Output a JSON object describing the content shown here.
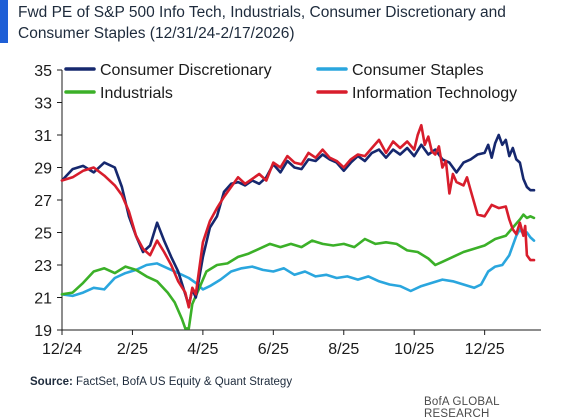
{
  "header": {
    "title": "Fwd PE of S&P 500 Info Tech, Industrials, Consumer Discretionary and Consumer Staples (12/31/24-2/17/2026)"
  },
  "footer": {
    "source_label": "Source:",
    "source_text": " FactSet, BofA US Equity & Quant Strategy",
    "brand": "BofA GLOBAL RESEARCH"
  },
  "chart_data": {
    "type": "line",
    "title": "Fwd PE of S&P 500 Info Tech, Industrials, Consumer Discretionary and Consumer Staples (12/31/24-2/17/2026)",
    "xlabel": "",
    "ylabel": "",
    "xlim": [
      0,
      13.6
    ],
    "ylim": [
      19,
      35
    ],
    "y_ticks": [
      19,
      21,
      23,
      25,
      27,
      29,
      31,
      33,
      35
    ],
    "x_ticks": [
      {
        "label": "12/24",
        "x": 0
      },
      {
        "label": "2/25",
        "x": 2
      },
      {
        "label": "4/25",
        "x": 4
      },
      {
        "label": "6/25",
        "x": 6
      },
      {
        "label": "8/25",
        "x": 8
      },
      {
        "label": "10/25",
        "x": 10
      },
      {
        "label": "12/25",
        "x": 12
      }
    ],
    "grid": false,
    "legend_position": "top",
    "series": [
      {
        "name": "Consumer Discretionary",
        "color": "#16286e",
        "points": [
          [
            0,
            28.2
          ],
          [
            0.3,
            28.9
          ],
          [
            0.6,
            29.1
          ],
          [
            0.9,
            28.7
          ],
          [
            1.2,
            29.3
          ],
          [
            1.5,
            29.0
          ],
          [
            1.7,
            27.8
          ],
          [
            1.9,
            26.0
          ],
          [
            2.1,
            24.8
          ],
          [
            2.3,
            23.8
          ],
          [
            2.5,
            24.2
          ],
          [
            2.7,
            25.6
          ],
          [
            2.9,
            24.5
          ],
          [
            3.1,
            23.5
          ],
          [
            3.3,
            22.6
          ],
          [
            3.5,
            21.2
          ],
          [
            3.6,
            20.5
          ],
          [
            3.7,
            21.5
          ],
          [
            3.8,
            21.0
          ],
          [
            4.0,
            23.5
          ],
          [
            4.2,
            25.3
          ],
          [
            4.4,
            26.0
          ],
          [
            4.6,
            27.5
          ],
          [
            4.8,
            28.0
          ],
          [
            5.0,
            28.1
          ],
          [
            5.2,
            27.9
          ],
          [
            5.4,
            28.2
          ],
          [
            5.6,
            28.0
          ],
          [
            5.8,
            28.4
          ],
          [
            6.0,
            29.2
          ],
          [
            6.2,
            28.7
          ],
          [
            6.4,
            29.4
          ],
          [
            6.6,
            29.0
          ],
          [
            6.8,
            28.9
          ],
          [
            7.0,
            29.5
          ],
          [
            7.2,
            29.4
          ],
          [
            7.4,
            29.8
          ],
          [
            7.6,
            29.5
          ],
          [
            7.8,
            29.3
          ],
          [
            8.0,
            28.8
          ],
          [
            8.2,
            29.3
          ],
          [
            8.4,
            29.7
          ],
          [
            8.6,
            29.4
          ],
          [
            8.8,
            29.9
          ],
          [
            9.0,
            30.1
          ],
          [
            9.2,
            29.6
          ],
          [
            9.4,
            30.1
          ],
          [
            9.6,
            29.8
          ],
          [
            9.8,
            30.2
          ],
          [
            10.0,
            29.7
          ],
          [
            10.2,
            30.4
          ],
          [
            10.4,
            29.8
          ],
          [
            10.6,
            30.1
          ],
          [
            10.8,
            29.5
          ],
          [
            11.0,
            29.3
          ],
          [
            11.2,
            28.7
          ],
          [
            11.4,
            29.3
          ],
          [
            11.6,
            29.5
          ],
          [
            11.8,
            29.8
          ],
          [
            12.0,
            29.9
          ],
          [
            12.1,
            30.4
          ],
          [
            12.2,
            29.6
          ],
          [
            12.3,
            30.5
          ],
          [
            12.4,
            31.0
          ],
          [
            12.5,
            30.4
          ],
          [
            12.6,
            30.7
          ],
          [
            12.7,
            29.7
          ],
          [
            12.8,
            30.2
          ],
          [
            12.9,
            29.5
          ],
          [
            13.0,
            29.3
          ],
          [
            13.1,
            28.3
          ],
          [
            13.2,
            27.8
          ],
          [
            13.3,
            27.6
          ],
          [
            13.4,
            27.6
          ]
        ]
      },
      {
        "name": "Consumer Staples",
        "color": "#2aa6de",
        "points": [
          [
            0,
            21.2
          ],
          [
            0.3,
            21.1
          ],
          [
            0.6,
            21.3
          ],
          [
            0.9,
            21.6
          ],
          [
            1.2,
            21.5
          ],
          [
            1.5,
            22.2
          ],
          [
            1.8,
            22.5
          ],
          [
            2.1,
            22.7
          ],
          [
            2.4,
            23.0
          ],
          [
            2.7,
            23.1
          ],
          [
            3.0,
            22.8
          ],
          [
            3.3,
            22.5
          ],
          [
            3.6,
            22.2
          ],
          [
            3.8,
            21.9
          ],
          [
            4.0,
            21.5
          ],
          [
            4.2,
            21.7
          ],
          [
            4.5,
            22.1
          ],
          [
            4.8,
            22.6
          ],
          [
            5.1,
            22.8
          ],
          [
            5.4,
            22.9
          ],
          [
            5.7,
            22.7
          ],
          [
            6.0,
            22.6
          ],
          [
            6.3,
            22.8
          ],
          [
            6.6,
            22.4
          ],
          [
            6.9,
            22.6
          ],
          [
            7.2,
            22.3
          ],
          [
            7.5,
            22.4
          ],
          [
            7.8,
            22.2
          ],
          [
            8.1,
            22.3
          ],
          [
            8.4,
            22.1
          ],
          [
            8.7,
            22.3
          ],
          [
            9.0,
            22.0
          ],
          [
            9.3,
            21.8
          ],
          [
            9.6,
            21.7
          ],
          [
            9.9,
            21.4
          ],
          [
            10.2,
            21.7
          ],
          [
            10.5,
            21.9
          ],
          [
            10.8,
            22.1
          ],
          [
            11.1,
            22.0
          ],
          [
            11.4,
            21.8
          ],
          [
            11.7,
            21.6
          ],
          [
            11.9,
            21.8
          ],
          [
            12.1,
            22.6
          ],
          [
            12.3,
            22.9
          ],
          [
            12.5,
            23.0
          ],
          [
            12.7,
            23.6
          ],
          [
            12.9,
            24.8
          ],
          [
            13.0,
            25.2
          ],
          [
            13.1,
            24.9
          ],
          [
            13.2,
            25.0
          ],
          [
            13.3,
            24.7
          ],
          [
            13.4,
            24.5
          ]
        ]
      },
      {
        "name": "Industrials",
        "color": "#3bb028",
        "points": [
          [
            0,
            21.2
          ],
          [
            0.3,
            21.3
          ],
          [
            0.6,
            21.9
          ],
          [
            0.9,
            22.6
          ],
          [
            1.2,
            22.8
          ],
          [
            1.5,
            22.5
          ],
          [
            1.8,
            22.9
          ],
          [
            2.1,
            22.7
          ],
          [
            2.4,
            22.3
          ],
          [
            2.7,
            22.0
          ],
          [
            3.0,
            21.3
          ],
          [
            3.2,
            20.7
          ],
          [
            3.4,
            19.7
          ],
          [
            3.5,
            19.1
          ],
          [
            3.6,
            19.1
          ],
          [
            3.7,
            20.6
          ],
          [
            3.9,
            21.6
          ],
          [
            4.1,
            22.6
          ],
          [
            4.4,
            23.0
          ],
          [
            4.7,
            23.1
          ],
          [
            5.0,
            23.5
          ],
          [
            5.3,
            23.7
          ],
          [
            5.6,
            24.0
          ],
          [
            5.9,
            24.3
          ],
          [
            6.2,
            24.1
          ],
          [
            6.5,
            24.3
          ],
          [
            6.8,
            24.1
          ],
          [
            7.1,
            24.5
          ],
          [
            7.4,
            24.3
          ],
          [
            7.7,
            24.2
          ],
          [
            8.0,
            24.3
          ],
          [
            8.3,
            24.1
          ],
          [
            8.6,
            24.6
          ],
          [
            8.9,
            24.3
          ],
          [
            9.2,
            24.4
          ],
          [
            9.5,
            24.3
          ],
          [
            9.8,
            23.9
          ],
          [
            10.1,
            23.8
          ],
          [
            10.4,
            23.4
          ],
          [
            10.6,
            23.0
          ],
          [
            10.8,
            23.2
          ],
          [
            11.1,
            23.5
          ],
          [
            11.4,
            23.8
          ],
          [
            11.7,
            24.0
          ],
          [
            12.0,
            24.2
          ],
          [
            12.3,
            24.6
          ],
          [
            12.6,
            24.8
          ],
          [
            12.8,
            25.3
          ],
          [
            13.0,
            25.8
          ],
          [
            13.1,
            26.1
          ],
          [
            13.2,
            25.9
          ],
          [
            13.3,
            26.0
          ],
          [
            13.4,
            25.9
          ]
        ]
      },
      {
        "name": "Information Technology",
        "color": "#d81d2c",
        "points": [
          [
            0,
            28.2
          ],
          [
            0.3,
            28.4
          ],
          [
            0.6,
            28.8
          ],
          [
            0.9,
            29.0
          ],
          [
            1.2,
            28.5
          ],
          [
            1.5,
            27.9
          ],
          [
            1.7,
            27.3
          ],
          [
            1.9,
            26.3
          ],
          [
            2.1,
            24.8
          ],
          [
            2.3,
            24.0
          ],
          [
            2.5,
            23.6
          ],
          [
            2.7,
            24.5
          ],
          [
            2.9,
            23.8
          ],
          [
            3.1,
            23.0
          ],
          [
            3.3,
            22.0
          ],
          [
            3.5,
            21.3
          ],
          [
            3.6,
            20.4
          ],
          [
            3.7,
            21.6
          ],
          [
            3.8,
            21.2
          ],
          [
            4.0,
            24.4
          ],
          [
            4.2,
            25.7
          ],
          [
            4.4,
            26.5
          ],
          [
            4.6,
            27.2
          ],
          [
            4.8,
            27.8
          ],
          [
            5.0,
            28.4
          ],
          [
            5.2,
            28.0
          ],
          [
            5.4,
            28.3
          ],
          [
            5.6,
            28.6
          ],
          [
            5.8,
            28.2
          ],
          [
            6.0,
            29.3
          ],
          [
            6.2,
            29.0
          ],
          [
            6.4,
            29.7
          ],
          [
            6.6,
            29.3
          ],
          [
            6.8,
            29.2
          ],
          [
            7.0,
            29.9
          ],
          [
            7.2,
            29.6
          ],
          [
            7.4,
            30.1
          ],
          [
            7.6,
            29.6
          ],
          [
            7.8,
            29.4
          ],
          [
            8.0,
            29.0
          ],
          [
            8.2,
            29.5
          ],
          [
            8.4,
            29.8
          ],
          [
            8.6,
            29.7
          ],
          [
            8.8,
            30.2
          ],
          [
            9.0,
            30.7
          ],
          [
            9.2,
            29.9
          ],
          [
            9.4,
            30.6
          ],
          [
            9.6,
            30.2
          ],
          [
            9.8,
            30.6
          ],
          [
            10.0,
            30.1
          ],
          [
            10.1,
            31.0
          ],
          [
            10.2,
            31.6
          ],
          [
            10.3,
            30.4
          ],
          [
            10.4,
            30.9
          ],
          [
            10.5,
            30.0
          ],
          [
            10.6,
            29.8
          ],
          [
            10.7,
            30.3
          ],
          [
            10.8,
            29.0
          ],
          [
            10.9,
            29.4
          ],
          [
            11.0,
            27.4
          ],
          [
            11.1,
            28.6
          ],
          [
            11.2,
            28.1
          ],
          [
            11.4,
            27.9
          ],
          [
            11.5,
            28.4
          ],
          [
            11.6,
            27.6
          ],
          [
            11.8,
            26.1
          ],
          [
            12.0,
            26.0
          ],
          [
            12.2,
            26.7
          ],
          [
            12.4,
            26.5
          ],
          [
            12.6,
            26.6
          ],
          [
            12.7,
            25.8
          ],
          [
            12.8,
            25.2
          ],
          [
            12.9,
            24.9
          ],
          [
            13.0,
            25.6
          ],
          [
            13.1,
            24.8
          ],
          [
            13.15,
            25.4
          ],
          [
            13.2,
            23.6
          ],
          [
            13.3,
            23.3
          ],
          [
            13.4,
            23.3
          ]
        ]
      }
    ]
  }
}
